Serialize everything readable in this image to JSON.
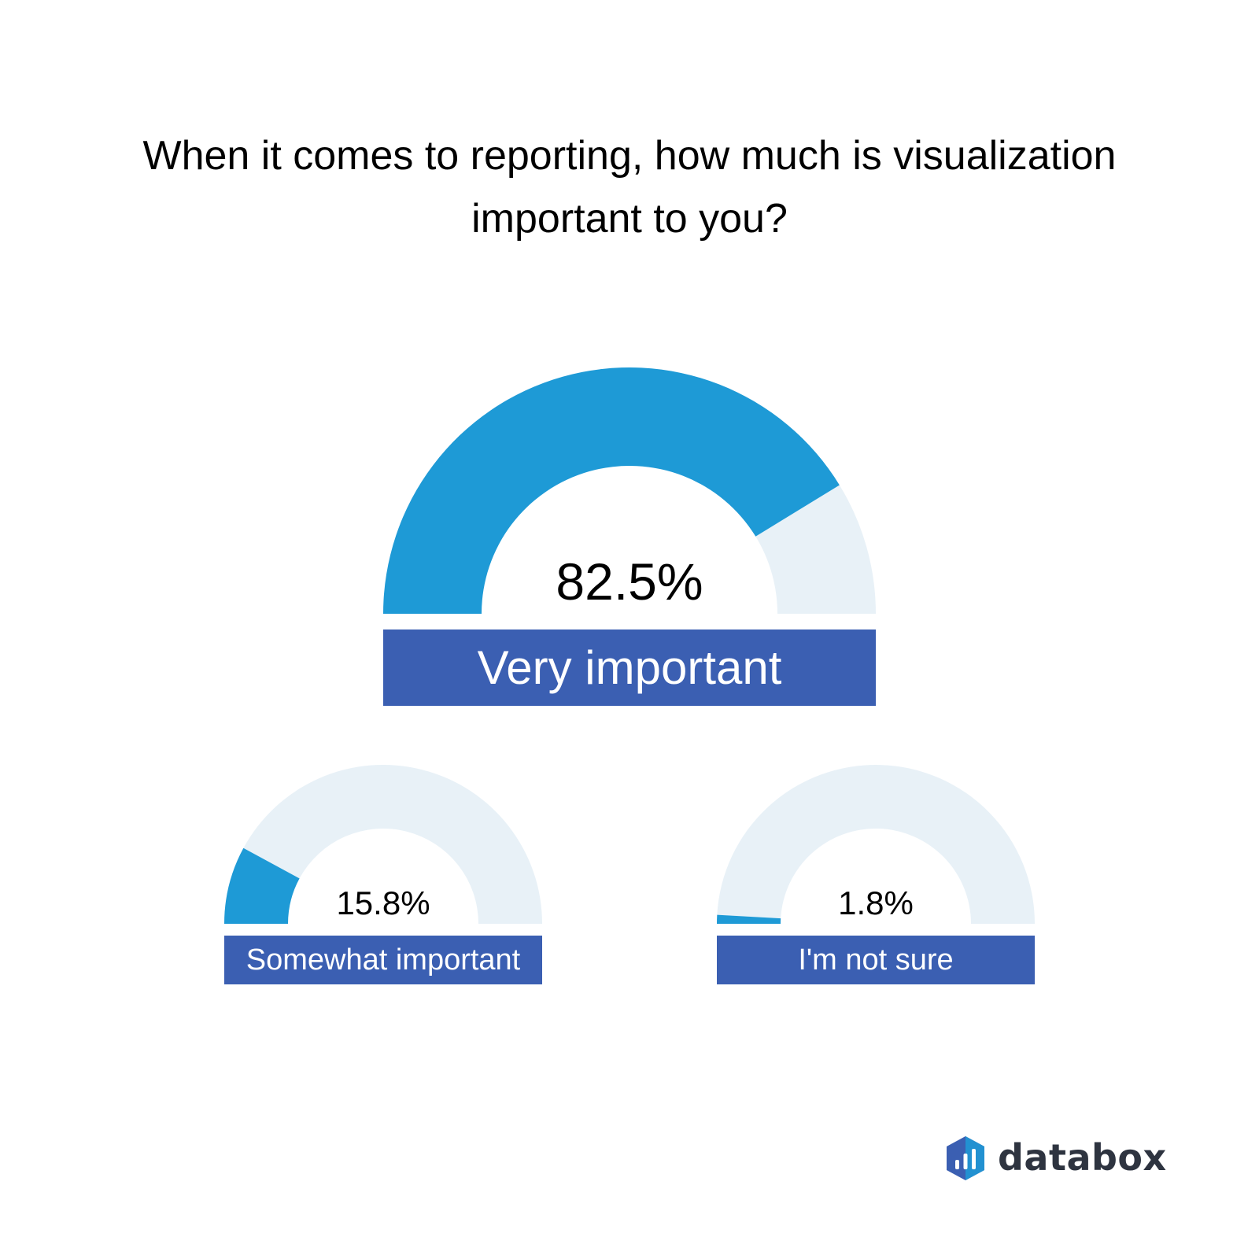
{
  "chart_data": [
    {
      "type": "gauge",
      "title": "When it comes to reporting, how much is visualization important to you?",
      "value": 82.5,
      "value_label": "82.5%",
      "label": "Very important",
      "range": [
        0,
        100
      ]
    },
    {
      "type": "gauge",
      "value": 15.8,
      "value_label": "15.8%",
      "label": "Somewhat important",
      "range": [
        0,
        100
      ]
    },
    {
      "type": "gauge",
      "value": 1.8,
      "value_label": "1.8%",
      "label": "I'm not sure",
      "range": [
        0,
        100
      ]
    }
  ],
  "colors": {
    "fill": "#1e9ad6",
    "track": "#e8f1f7",
    "label_bg": "#3b5fb2",
    "label_text": "#ffffff"
  },
  "brand": {
    "name": "databox",
    "logo_icon": "databox-logo-icon"
  }
}
